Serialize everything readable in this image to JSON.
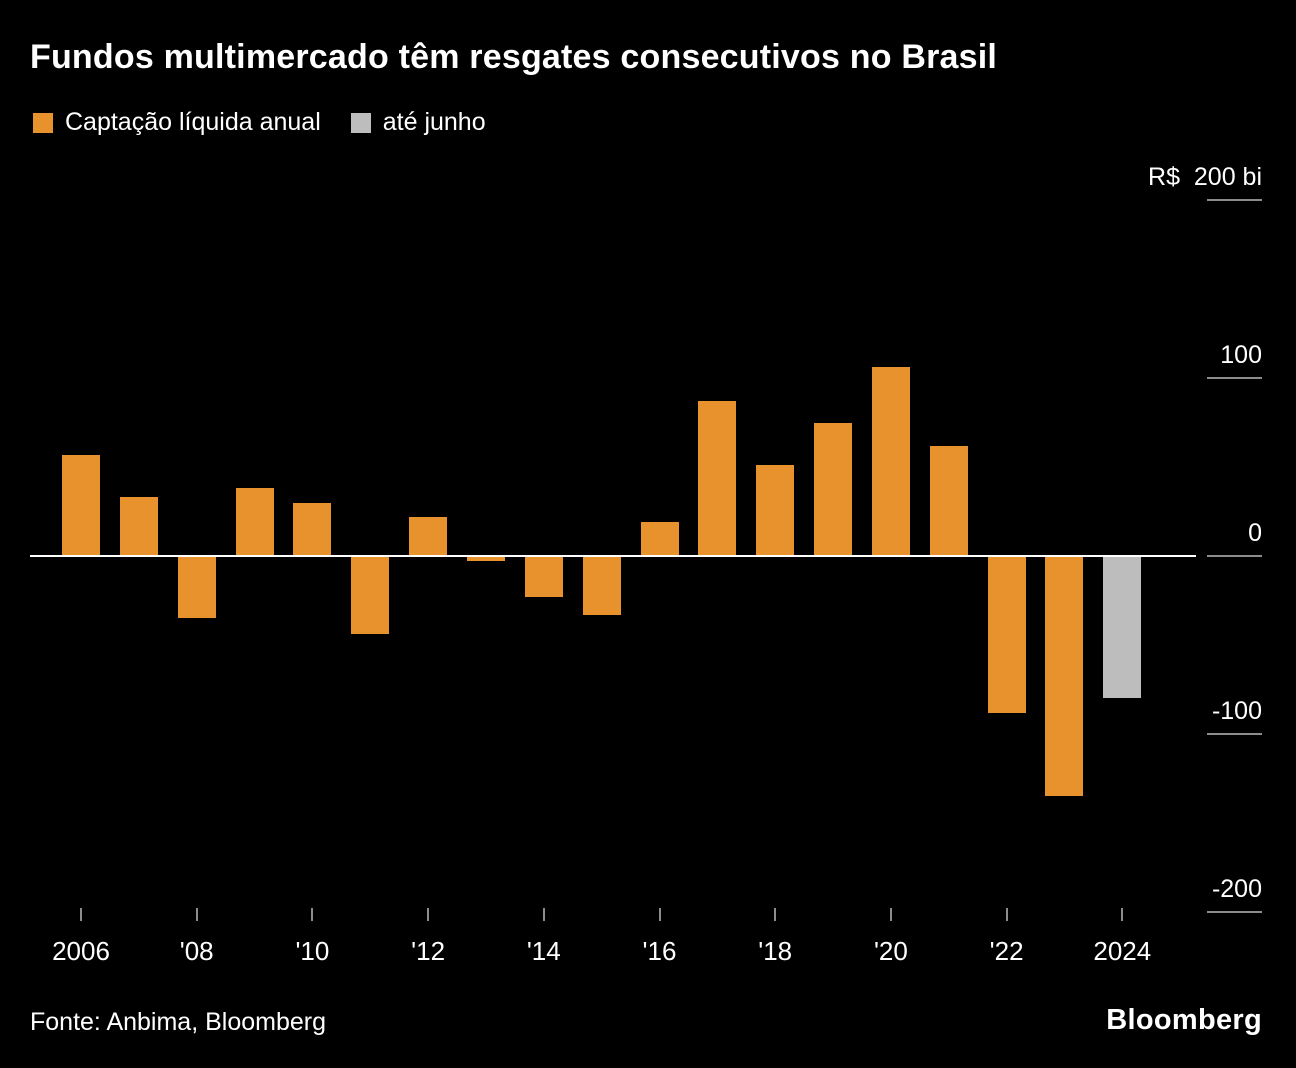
{
  "title": "Fundos multimercado têm resgates consecutivos no Brasil",
  "source": "Fonte: Anbima, Bloomberg",
  "logo": "Bloomberg",
  "colors": {
    "background": "#000000",
    "bar_orange": "#E8922E",
    "bar_gray": "#BDBDBD",
    "zero_line": "#FFFFFF",
    "tick": "#8C8C8C",
    "text": "#FFFFFF"
  },
  "legend": [
    {
      "label": "Captação líquida anual",
      "color": "#E8922E"
    },
    {
      "label": "até junho",
      "color": "#BDBDBD"
    }
  ],
  "chart_data": {
    "type": "bar",
    "title": "Fundos multimercado têm resgates consecutivos no Brasil",
    "unit": "R$ bi",
    "categories": [
      "2006",
      "2007",
      "2008",
      "2009",
      "2010",
      "2011",
      "2012",
      "2013",
      "2014",
      "2015",
      "2016",
      "2017",
      "2018",
      "2019",
      "2020",
      "2021",
      "2022",
      "2023",
      "2024"
    ],
    "series": [
      {
        "name": "Captação líquida anual",
        "color": "#E8922E",
        "values": [
          57,
          33,
          -35,
          38,
          30,
          -44,
          22,
          -3,
          -23,
          -33,
          19,
          87,
          51,
          75,
          106,
          62,
          -88,
          -135,
          null
        ]
      },
      {
        "name": "até junho",
        "color": "#BDBDBD",
        "values": [
          null,
          null,
          null,
          null,
          null,
          null,
          null,
          null,
          null,
          null,
          null,
          null,
          null,
          null,
          null,
          null,
          null,
          null,
          -80
        ]
      }
    ],
    "ylim": [
      -220,
      220
    ],
    "y_axis": [
      {
        "value": 200,
        "label": "R$  200 bi"
      },
      {
        "value": 100,
        "label": "100"
      },
      {
        "value": 0,
        "label": "0"
      },
      {
        "value": -100,
        "label": "-100"
      },
      {
        "value": -200,
        "label": "-200"
      }
    ],
    "x_tick_labels": [
      {
        "index": 0,
        "label": "2006"
      },
      {
        "index": 2,
        "label": "'08"
      },
      {
        "index": 4,
        "label": "'10"
      },
      {
        "index": 6,
        "label": "'12"
      },
      {
        "index": 8,
        "label": "'14"
      },
      {
        "index": 10,
        "label": "'16"
      },
      {
        "index": 12,
        "label": "'18"
      },
      {
        "index": 14,
        "label": "'20"
      },
      {
        "index": 16,
        "label": "'22"
      },
      {
        "index": 18,
        "label": "2024"
      }
    ],
    "legend_position": "top",
    "grid": false
  }
}
